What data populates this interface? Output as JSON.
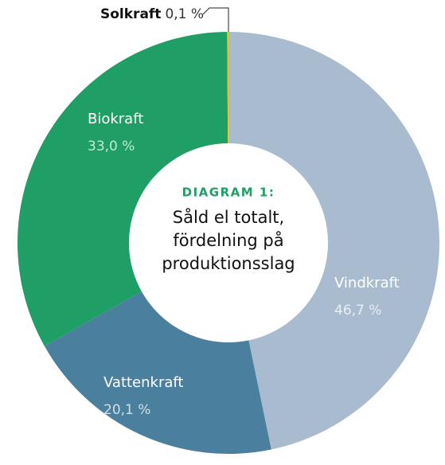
{
  "chart_data": {
    "type": "donut",
    "title": "DIAGRAM 1:",
    "subtitle": [
      "Såld el totalt,",
      "fördelning på",
      "produktionsslag"
    ],
    "categories": [
      "Vindkraft",
      "Vattenkraft",
      "Biokraft",
      "Solkraft"
    ],
    "values": [
      46.7,
      20.1,
      33.0,
      0.1
    ],
    "value_labels": [
      "46,7 %",
      "20,1 %",
      "33,0 %",
      "0,1 %"
    ],
    "colors": [
      "#a9bccf",
      "#4a7f9d",
      "#1f9e65",
      "#f2c318"
    ]
  }
}
